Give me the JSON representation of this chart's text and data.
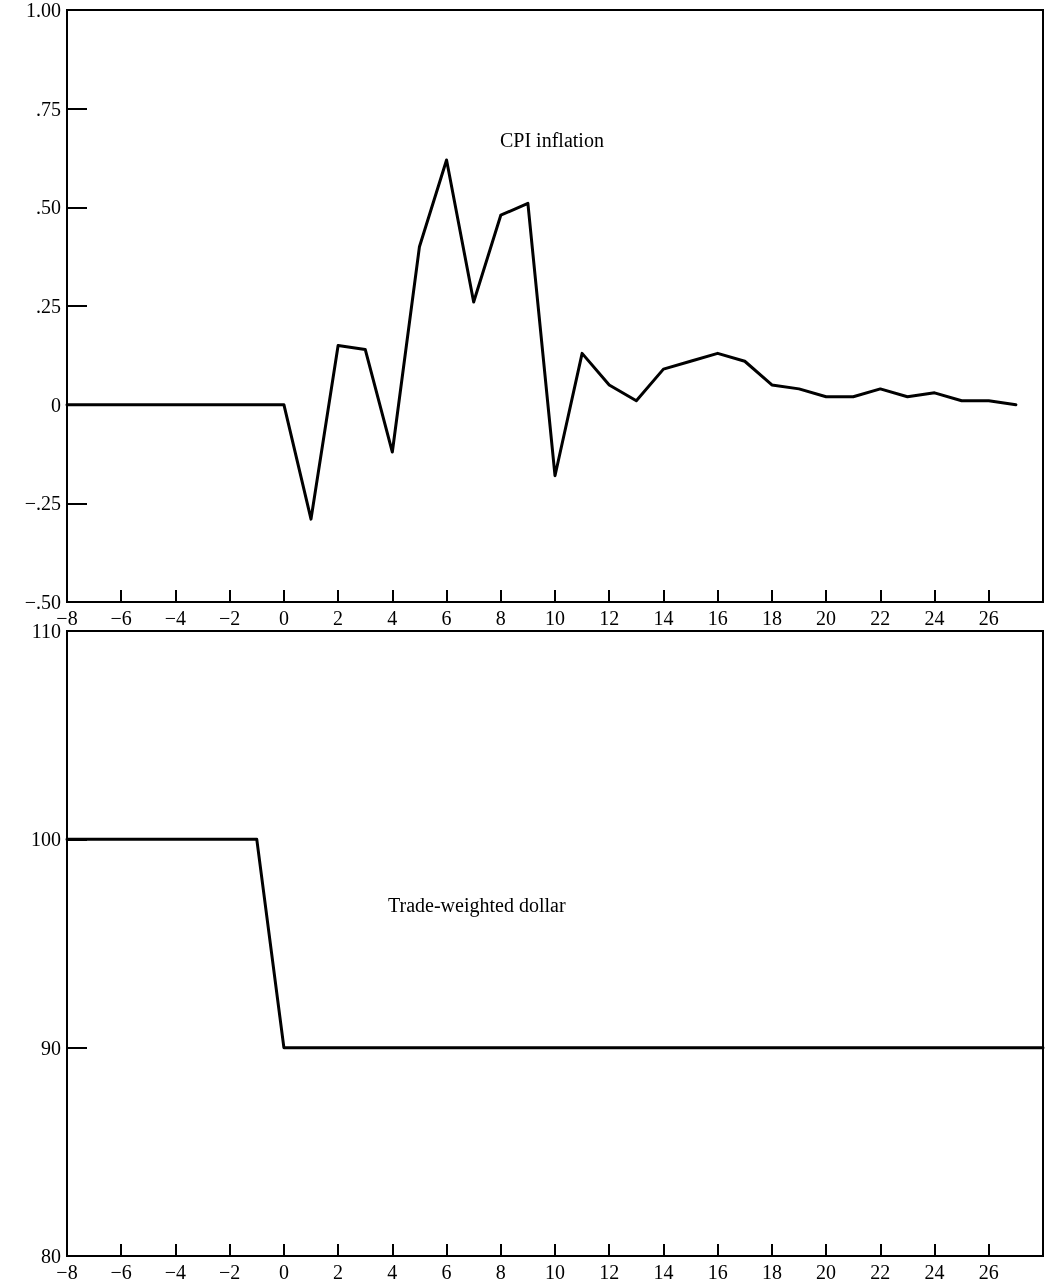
{
  "chart_data": [
    {
      "type": "line",
      "xlim": [
        -8,
        28
      ],
      "xticks": [
        -8,
        -6,
        -4,
        -2,
        0,
        2,
        4,
        6,
        8,
        10,
        12,
        14,
        16,
        18,
        20,
        22,
        24,
        26
      ],
      "ylim": [
        -0.5,
        1.0
      ],
      "yticks": [
        {
          "value": -0.5,
          "label": "−.50"
        },
        {
          "value": -0.25,
          "label": "−.25"
        },
        {
          "value": 0,
          "label": "0"
        },
        {
          "value": 0.25,
          "label": ".25"
        },
        {
          "value": 0.5,
          "label": ".50"
        },
        {
          "value": 0.75,
          "label": ".75"
        },
        {
          "value": 1.0,
          "label": "1.00"
        }
      ],
      "grid": false,
      "legend": false,
      "marker": "none",
      "line_style": "solid",
      "series": [
        {
          "name": "CPI inflation",
          "color": "#000000",
          "x": [
            -8,
            0,
            1,
            2,
            3,
            4,
            5,
            6,
            7,
            8,
            9,
            10,
            11,
            12,
            13,
            14,
            15,
            16,
            17,
            18,
            19,
            20,
            21,
            22,
            23,
            24,
            25,
            26,
            27
          ],
          "values": [
            0,
            0,
            -0.29,
            0.15,
            0.14,
            -0.12,
            0.4,
            0.62,
            0.26,
            0.48,
            0.51,
            -0.18,
            0.13,
            0.05,
            0.01,
            0.09,
            0.11,
            0.13,
            0.11,
            0.05,
            0.04,
            0.02,
            0.02,
            0.04,
            0.02,
            0.03,
            0.01,
            0.01,
            0
          ]
        }
      ]
    },
    {
      "type": "line",
      "xlim": [
        -8,
        28
      ],
      "xticks": [
        -8,
        -6,
        -4,
        -2,
        0,
        2,
        4,
        6,
        8,
        10,
        12,
        14,
        16,
        18,
        20,
        22,
        24,
        26
      ],
      "ylim": [
        80,
        110
      ],
      "yticks": [
        80,
        90,
        100,
        110
      ],
      "grid": false,
      "legend": false,
      "marker": "none",
      "line_style": "solid",
      "series": [
        {
          "name": "Trade-weighted dollar",
          "color": "#000000",
          "x": [
            -8,
            -1,
            0,
            28
          ],
          "values": [
            100,
            100,
            90,
            90
          ]
        }
      ]
    }
  ]
}
